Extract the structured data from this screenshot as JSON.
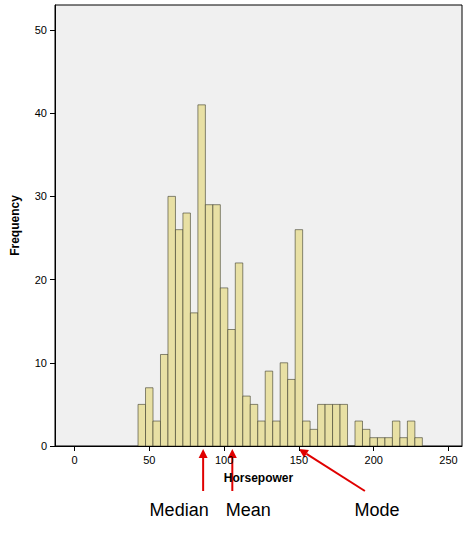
{
  "chart_data": {
    "type": "histogram",
    "xlabel": "Horsepower",
    "ylabel": "Frequency",
    "bins": [
      42.5,
      47.5,
      52.5,
      57.5,
      62.5,
      67.5,
      72.5,
      77.5,
      82.5,
      87.5,
      92.5,
      97.5,
      102.5,
      107.5,
      112.5,
      117.5,
      122.5,
      127.5,
      132.5,
      137.5,
      142.5,
      147.5,
      152.5,
      157.5,
      162.5,
      167.5,
      172.5,
      177.5,
      182.5,
      187.5,
      192.5,
      197.5,
      202.5,
      207.5,
      212.5,
      217.5,
      222.5,
      227.5,
      232.5
    ],
    "counts": [
      5,
      7,
      3,
      11,
      30,
      26,
      28,
      16,
      41,
      29,
      29,
      19,
      14,
      22,
      6,
      5,
      3,
      9,
      3,
      10,
      8,
      26,
      3,
      2,
      5,
      5,
      5,
      5,
      0,
      3,
      2,
      1,
      1,
      1,
      3,
      1,
      3,
      1
    ],
    "color": "#e8e0a4",
    "xlim": [
      -13,
      259
    ],
    "ylim": [
      0,
      53
    ],
    "xticks": [
      0,
      50,
      100,
      150,
      200,
      250
    ],
    "yticks": [
      0,
      10,
      20,
      30,
      40,
      50
    ],
    "grid": false,
    "annotations": [
      {
        "text": "Median",
        "x": 86,
        "color": "#e00000"
      },
      {
        "text": "Mean",
        "x": 105.5,
        "color": "#e00000"
      },
      {
        "text": "Mode",
        "x": 150,
        "color": "#e00000"
      }
    ]
  }
}
